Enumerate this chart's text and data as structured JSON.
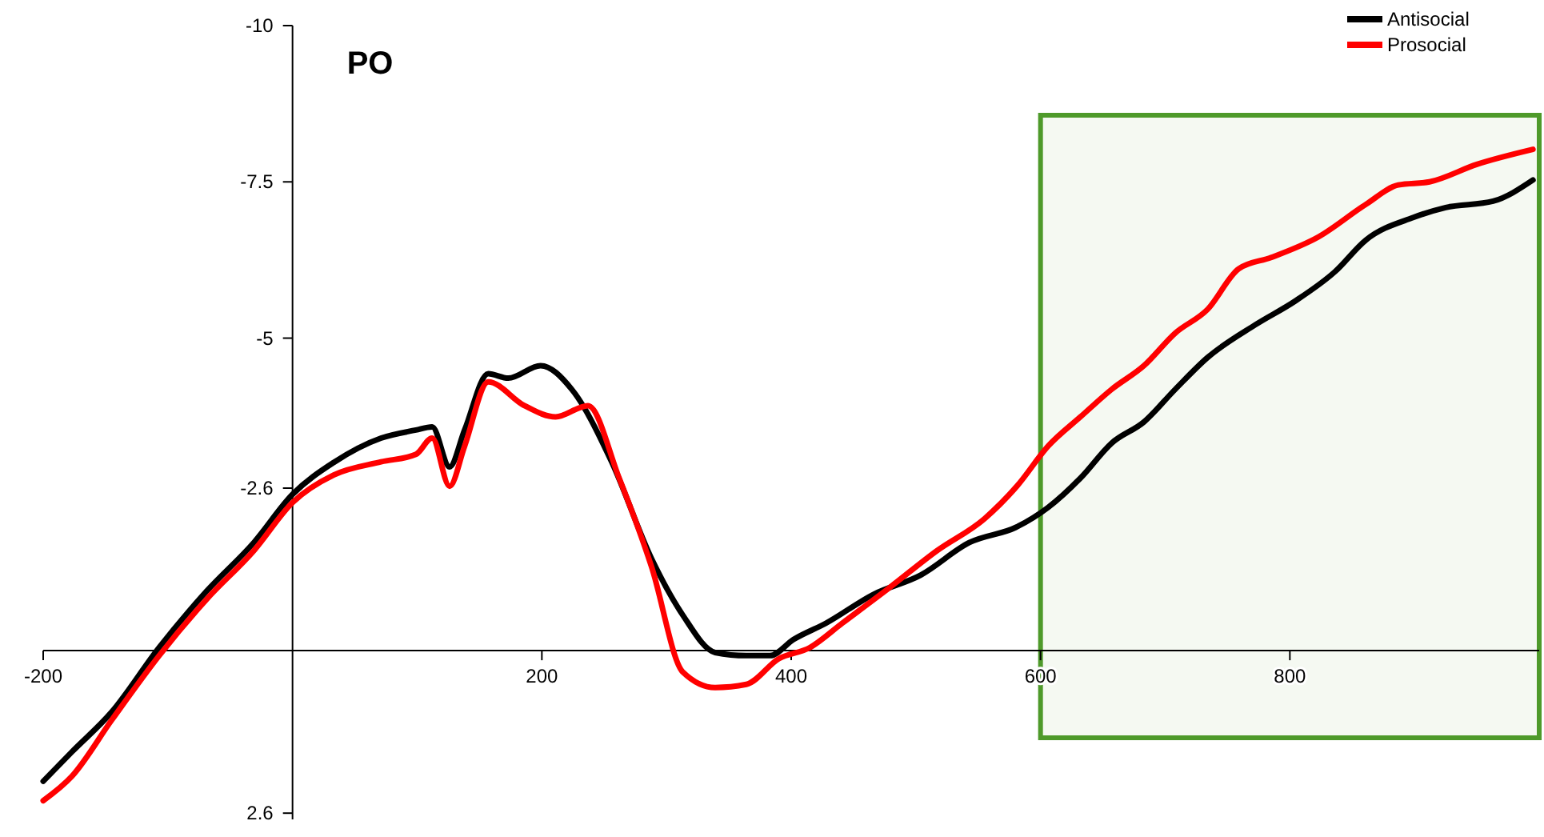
{
  "chart_data": {
    "type": "line",
    "title": "PO",
    "xlim": [
      -200,
      1000
    ],
    "xticks": [
      -200,
      200,
      400,
      600,
      800
    ],
    "ylim": [
      2.7,
      -10
    ],
    "yticks": [
      -10,
      -7.5,
      -5,
      -2.6,
      2.6
    ],
    "legend": "top right",
    "grid": false,
    "bands": [
      {
        "axis": "x",
        "from": 600,
        "to": 1000,
        "color": "#4e9a2a"
      }
    ],
    "series": [
      {
        "name": "Antisocial",
        "color": "#000000",
        "x": [
          -200,
          -177,
          -145,
          -107,
          -69,
          -31,
          0,
          33,
          71,
          99,
          112,
          126,
          138,
          157,
          173,
          199,
          224,
          256,
          288,
          313,
          339,
          364,
          383,
          402,
          428,
          466,
          504,
          543,
          581,
          606,
          632,
          657,
          683,
          708,
          734,
          772,
          804,
          836,
          861,
          899,
          925,
          963,
          995
        ],
        "values": [
          2.09,
          1.62,
          0.98,
          -0.05,
          -0.95,
          -1.73,
          -2.5,
          -3.01,
          -3.4,
          -3.53,
          -3.58,
          -2.94,
          -3.53,
          -4.43,
          -4.36,
          -4.56,
          -4.18,
          -3.02,
          -1.47,
          -0.57,
          0.03,
          0.08,
          0.08,
          -0.18,
          -0.44,
          -0.9,
          -1.21,
          -1.73,
          -1.98,
          -2.29,
          -2.76,
          -3.32,
          -3.66,
          -4.18,
          -4.69,
          -5.21,
          -5.59,
          -6.06,
          -6.57,
          -6.93,
          -7.09,
          -7.19,
          -7.53
        ]
      },
      {
        "name": "Prosocial",
        "color": "#ff0000",
        "x": [
          -200,
          -177,
          -145,
          -107,
          -69,
          -31,
          0,
          33,
          71,
          99,
          112,
          126,
          138,
          157,
          186,
          211,
          237,
          262,
          288,
          313,
          339,
          364,
          390,
          415,
          441,
          479,
          517,
          555,
          581,
          606,
          632,
          657,
          683,
          708,
          734,
          759,
          785,
          823,
          861,
          887,
          912,
          950,
          995
        ],
        "values": [
          2.4,
          2.01,
          1.11,
          0.08,
          -0.82,
          -1.6,
          -2.37,
          -2.81,
          -3.02,
          -3.14,
          -3.4,
          -2.63,
          -3.27,
          -4.3,
          -3.92,
          -3.74,
          -3.92,
          -2.76,
          -1.34,
          0.34,
          0.59,
          0.54,
          0.13,
          -0.05,
          -0.44,
          -1.01,
          -1.6,
          -2.11,
          -2.63,
          -3.27,
          -3.74,
          -4.18,
          -4.56,
          -5.08,
          -5.46,
          -6.11,
          -6.29,
          -6.62,
          -7.14,
          -7.45,
          -7.5,
          -7.78,
          -8.02
        ]
      }
    ]
  }
}
